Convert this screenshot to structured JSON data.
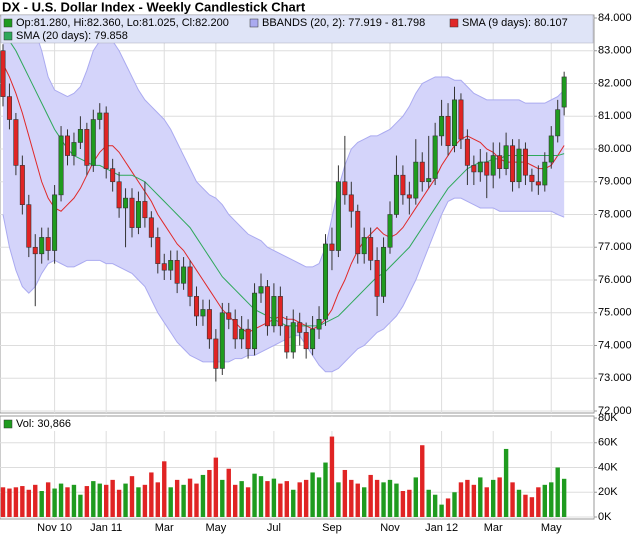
{
  "chart_data": [
    {
      "type": "candlestick",
      "title": "DX - U.S. Dollar Index - Weekly Candlestick Chart",
      "categories": [
        null,
        null,
        null,
        null,
        null,
        null,
        null,
        null,
        "Nov 10",
        null,
        null,
        null,
        null,
        null,
        null,
        null,
        "Jan 11",
        null,
        null,
        null,
        null,
        null,
        null,
        null,
        null,
        "Mar",
        null,
        null,
        null,
        null,
        null,
        null,
        null,
        "May",
        null,
        null,
        null,
        null,
        null,
        null,
        null,
        null,
        "Jul",
        null,
        null,
        null,
        null,
        null,
        null,
        null,
        null,
        "Sep",
        null,
        null,
        null,
        null,
        null,
        null,
        null,
        null,
        "Nov",
        null,
        null,
        null,
        null,
        null,
        null,
        null,
        "Jan 12",
        null,
        null,
        null,
        null,
        null,
        null,
        null,
        "Mar",
        null,
        null,
        null,
        null,
        null,
        null,
        null,
        null,
        "May",
        null,
        null
      ],
      "ohlc": {
        "name": "Op:81.280, Hi:82.360, Lo:81.025, Cl:82.200",
        "up_color": "#1f9b1f",
        "down_color": "#e02424",
        "open": [
          83.0,
          81.6,
          80.9,
          79.5,
          78.3,
          77.0,
          76.8,
          77.3,
          76.9,
          78.6,
          80.4,
          79.8,
          80.2,
          80.6,
          79.5,
          80.9,
          81.1,
          79.4,
          79.0,
          78.2,
          78.5,
          77.6,
          78.4,
          77.9,
          77.3,
          76.5,
          76.3,
          76.6,
          75.9,
          76.4,
          75.5,
          74.9,
          75.1,
          74.2,
          73.3,
          75.0,
          74.8,
          74.2,
          74.5,
          73.9,
          75.6,
          75.8,
          74.6,
          75.5,
          74.6,
          73.8,
          74.7,
          74.4,
          73.9,
          74.5,
          74.8,
          77.1,
          76.9,
          79.0,
          78.6,
          78.1,
          76.8,
          77.3,
          76.6,
          75.5,
          77.0,
          78.0,
          79.2,
          78.6,
          78.5,
          79.6,
          79.0,
          79.1,
          80.4,
          81.0,
          80.1,
          81.5,
          80.3,
          79.5,
          79.3,
          79.6,
          79.2,
          79.8,
          79.4,
          80.1,
          79.0,
          80.0,
          79.2,
          79.0,
          78.9,
          79.6,
          80.4,
          81.28
        ],
        "high": [
          83.2,
          82.0,
          81.1,
          79.8,
          78.6,
          77.4,
          77.6,
          77.6,
          78.9,
          80.7,
          80.6,
          80.5,
          81.0,
          80.8,
          81.2,
          81.4,
          81.3,
          79.7,
          79.3,
          78.8,
          78.8,
          78.7,
          79.0,
          78.1,
          77.6,
          76.8,
          76.9,
          76.9,
          76.7,
          76.6,
          75.8,
          75.4,
          75.4,
          74.5,
          75.3,
          75.3,
          75.1,
          74.9,
          74.8,
          75.9,
          76.2,
          76.0,
          75.9,
          75.8,
          74.9,
          75.1,
          75.0,
          74.7,
          74.9,
          75.2,
          77.4,
          77.6,
          79.5,
          80.4,
          79.0,
          78.3,
          77.6,
          77.6,
          77.0,
          77.3,
          78.4,
          79.8,
          79.5,
          79.0,
          80.3,
          79.9,
          80.4,
          80.8,
          81.5,
          81.4,
          81.9,
          81.7,
          80.6,
          79.8,
          80.0,
          79.9,
          80.2,
          80.2,
          80.5,
          80.3,
          80.3,
          80.2,
          79.4,
          79.5,
          79.9,
          80.7,
          81.5,
          82.36
        ],
        "low": [
          81.3,
          80.6,
          79.2,
          78.0,
          76.7,
          75.2,
          76.5,
          76.6,
          76.5,
          78.4,
          79.5,
          79.5,
          80.0,
          79.2,
          79.3,
          80.6,
          79.1,
          78.7,
          77.9,
          77.0,
          77.3,
          77.4,
          77.6,
          77.0,
          76.2,
          76.0,
          76.0,
          75.6,
          75.7,
          75.2,
          74.6,
          74.6,
          73.9,
          72.9,
          73.1,
          74.5,
          73.9,
          73.9,
          73.6,
          73.7,
          75.3,
          74.3,
          74.4,
          74.3,
          73.6,
          73.6,
          74.0,
          73.6,
          73.7,
          74.2,
          74.6,
          76.3,
          76.7,
          78.3,
          77.6,
          76.5,
          76.5,
          76.3,
          74.9,
          75.3,
          76.8,
          77.9,
          78.3,
          78.0,
          78.3,
          78.7,
          78.8,
          78.9,
          80.1,
          79.8,
          79.9,
          80.0,
          78.9,
          78.9,
          79.0,
          78.5,
          78.8,
          79.1,
          79.2,
          78.7,
          78.8,
          78.9,
          78.7,
          78.6,
          78.7,
          79.4,
          80.2,
          81.025
        ],
        "close": [
          81.6,
          80.9,
          79.5,
          78.3,
          77.0,
          76.8,
          77.3,
          76.9,
          78.6,
          80.4,
          79.8,
          80.2,
          80.6,
          79.5,
          80.9,
          81.1,
          79.4,
          79.0,
          78.2,
          78.5,
          77.6,
          78.4,
          77.9,
          77.3,
          76.5,
          76.3,
          76.6,
          75.9,
          76.4,
          75.5,
          74.9,
          75.1,
          74.2,
          73.3,
          75.0,
          74.8,
          74.2,
          74.5,
          73.9,
          75.6,
          75.8,
          74.6,
          75.5,
          74.6,
          73.8,
          74.7,
          74.4,
          73.9,
          74.5,
          74.8,
          77.1,
          76.9,
          79.0,
          78.6,
          78.1,
          76.8,
          77.3,
          76.6,
          75.5,
          77.0,
          78.0,
          79.2,
          78.6,
          78.5,
          79.6,
          79.0,
          79.1,
          80.4,
          81.0,
          80.1,
          81.5,
          80.3,
          79.5,
          79.3,
          79.6,
          79.2,
          79.8,
          79.4,
          80.1,
          79.0,
          80.0,
          79.2,
          79.0,
          78.9,
          79.6,
          80.4,
          81.2,
          82.2
        ]
      },
      "bands": {
        "name": "BBANDS (20, 2): 77.919 - 81.798",
        "color": "#aaaaf0",
        "fill": "#d4d4fa",
        "upper": [
          84.8,
          84.6,
          84.4,
          84.2,
          84.0,
          83.6,
          83.0,
          82.2,
          81.8,
          81.7,
          81.6,
          81.7,
          81.9,
          82.4,
          83.0,
          83.3,
          83.5,
          83.3,
          83.0,
          82.6,
          82.2,
          81.8,
          81.5,
          81.3,
          81.1,
          80.9,
          80.6,
          80.2,
          79.8,
          79.4,
          79.0,
          78.8,
          78.6,
          78.5,
          78.3,
          78.0,
          77.8,
          77.6,
          77.4,
          77.3,
          77.2,
          77.0,
          76.9,
          76.8,
          76.7,
          76.6,
          76.5,
          76.4,
          76.4,
          76.5,
          77.0,
          77.9,
          78.8,
          79.5,
          80.0,
          80.2,
          80.3,
          80.4,
          80.4,
          80.5,
          80.6,
          80.8,
          81.0,
          81.3,
          81.7,
          82.0,
          82.1,
          82.2,
          82.2,
          82.2,
          82.1,
          82.1,
          81.9,
          81.7,
          81.6,
          81.5,
          81.5,
          81.5,
          81.5,
          81.5,
          81.5,
          81.4,
          81.4,
          81.4,
          81.4,
          81.5,
          81.6,
          81.798
        ],
        "lower": [
          78.0,
          77.0,
          76.3,
          75.8,
          75.6,
          75.8,
          76.2,
          76.5,
          76.6,
          76.5,
          76.4,
          76.4,
          76.5,
          76.6,
          76.6,
          76.6,
          76.5,
          76.5,
          76.4,
          76.3,
          76.2,
          76.0,
          75.8,
          75.4,
          75.0,
          74.7,
          74.4,
          74.1,
          73.9,
          73.7,
          73.6,
          73.5,
          73.5,
          73.5,
          73.5,
          73.5,
          73.6,
          73.6,
          73.7,
          73.7,
          73.8,
          73.9,
          74.0,
          74.1,
          74.2,
          74.3,
          74.3,
          74.0,
          73.7,
          73.4,
          73.2,
          73.2,
          73.3,
          73.5,
          73.7,
          73.9,
          74.0,
          74.2,
          74.4,
          74.5,
          74.7,
          74.9,
          75.2,
          75.6,
          76.0,
          76.5,
          77.0,
          77.5,
          78.0,
          78.4,
          78.5,
          78.5,
          78.4,
          78.3,
          78.2,
          78.2,
          78.2,
          78.1,
          78.1,
          78.1,
          78.1,
          78.1,
          78.1,
          78.1,
          78.1,
          78.1,
          78.0,
          77.919
        ]
      },
      "series": [
        {
          "name": "SMA (9 days): 80.107",
          "color": "#e02828",
          "values": [
            82.6,
            82.2,
            81.7,
            81.1,
            80.4,
            79.7,
            79.0,
            78.5,
            78.2,
            78.1,
            78.3,
            78.5,
            78.8,
            79.2,
            79.6,
            79.9,
            80.1,
            80.1,
            79.9,
            79.6,
            79.3,
            79.0,
            78.7,
            78.4,
            78.0,
            77.7,
            77.4,
            77.1,
            76.9,
            76.6,
            76.3,
            76.0,
            75.7,
            75.4,
            75.1,
            74.9,
            74.7,
            74.5,
            74.4,
            74.5,
            74.6,
            74.7,
            74.8,
            74.9,
            74.8,
            74.8,
            74.7,
            74.6,
            74.5,
            74.6,
            74.8,
            75.1,
            75.6,
            76.0,
            76.5,
            76.9,
            77.2,
            77.4,
            77.6,
            77.4,
            77.3,
            77.4,
            77.6,
            77.9,
            78.2,
            78.5,
            78.8,
            79.1,
            79.5,
            79.8,
            80.1,
            80.3,
            80.4,
            80.3,
            80.2,
            80.0,
            79.9,
            79.7,
            79.6,
            79.6,
            79.6,
            79.6,
            79.5,
            79.4,
            79.4,
            79.5,
            79.8,
            80.107
          ]
        },
        {
          "name": "SMA (20 days): 79.858",
          "color": "#2ea85a",
          "values": [
            83.6,
            83.3,
            83.0,
            82.6,
            82.2,
            81.8,
            81.4,
            81.0,
            80.6,
            80.3,
            80.0,
            79.8,
            79.7,
            79.6,
            79.5,
            79.5,
            79.4,
            79.3,
            79.2,
            79.2,
            79.2,
            79.1,
            79.0,
            78.8,
            78.6,
            78.4,
            78.2,
            78.0,
            77.8,
            77.6,
            77.3,
            77.0,
            76.7,
            76.4,
            76.1,
            75.9,
            75.7,
            75.5,
            75.3,
            75.1,
            75.0,
            74.9,
            74.8,
            74.7,
            74.6,
            74.6,
            74.6,
            74.6,
            74.6,
            74.6,
            74.7,
            74.8,
            74.9,
            75.1,
            75.3,
            75.5,
            75.7,
            75.9,
            76.1,
            76.2,
            76.4,
            76.6,
            76.8,
            77.0,
            77.3,
            77.6,
            77.9,
            78.2,
            78.5,
            78.8,
            79.0,
            79.2,
            79.4,
            79.5,
            79.6,
            79.6,
            79.7,
            79.7,
            79.8,
            79.8,
            79.8,
            79.8,
            79.8,
            79.8,
            79.8,
            79.8,
            79.8,
            79.858
          ]
        }
      ],
      "ylim": [
        72,
        84
      ],
      "yticks": [
        {
          "value": 72,
          "label": "72.000"
        },
        {
          "value": 73,
          "label": "73.000"
        },
        {
          "value": 74,
          "label": "74.000"
        },
        {
          "value": 75,
          "label": "75.000"
        },
        {
          "value": 76,
          "label": "76.000"
        },
        {
          "value": 77,
          "label": "77.000"
        },
        {
          "value": 78,
          "label": "78.000"
        },
        {
          "value": 79,
          "label": "79.000"
        },
        {
          "value": 80,
          "label": "80.000"
        },
        {
          "value": 81,
          "label": "81.000"
        },
        {
          "value": 82,
          "label": "82.000"
        },
        {
          "value": 83,
          "label": "83.000"
        },
        {
          "value": 84,
          "label": "84.000"
        }
      ],
      "grid": true
    },
    {
      "type": "bar",
      "name": "Vol: 30,866",
      "values": [
        24000,
        23000,
        24000,
        25000,
        22000,
        26000,
        21000,
        28000,
        23000,
        27000,
        24000,
        26000,
        18000,
        25000,
        29000,
        27000,
        26000,
        30000,
        22000,
        27000,
        33000,
        24000,
        26000,
        36000,
        28000,
        45000,
        24000,
        30000,
        26000,
        31000,
        27000,
        34000,
        38000,
        48000,
        30000,
        39000,
        26000,
        29000,
        24000,
        35000,
        33000,
        29000,
        31000,
        27000,
        29000,
        22000,
        28000,
        30000,
        36000,
        32000,
        44000,
        65000,
        28000,
        38000,
        30000,
        27000,
        24000,
        34000,
        30000,
        28000,
        30000,
        27000,
        21000,
        22000,
        32000,
        58000,
        22000,
        18000,
        10000,
        15000,
        20000,
        28000,
        30000,
        26000,
        32000,
        24000,
        30000,
        32000,
        55000,
        28000,
        22000,
        18000,
        16000,
        24000,
        26000,
        28000,
        40000,
        30866
      ],
      "ylim": [
        0,
        80000
      ],
      "yticks": [
        {
          "value": 0,
          "label": "0K"
        },
        {
          "value": 20000,
          "label": "20K"
        },
        {
          "value": 40000,
          "label": "40K"
        },
        {
          "value": 60000,
          "label": "60K"
        },
        {
          "value": 80000,
          "label": "80K"
        }
      ],
      "grid": true
    }
  ]
}
